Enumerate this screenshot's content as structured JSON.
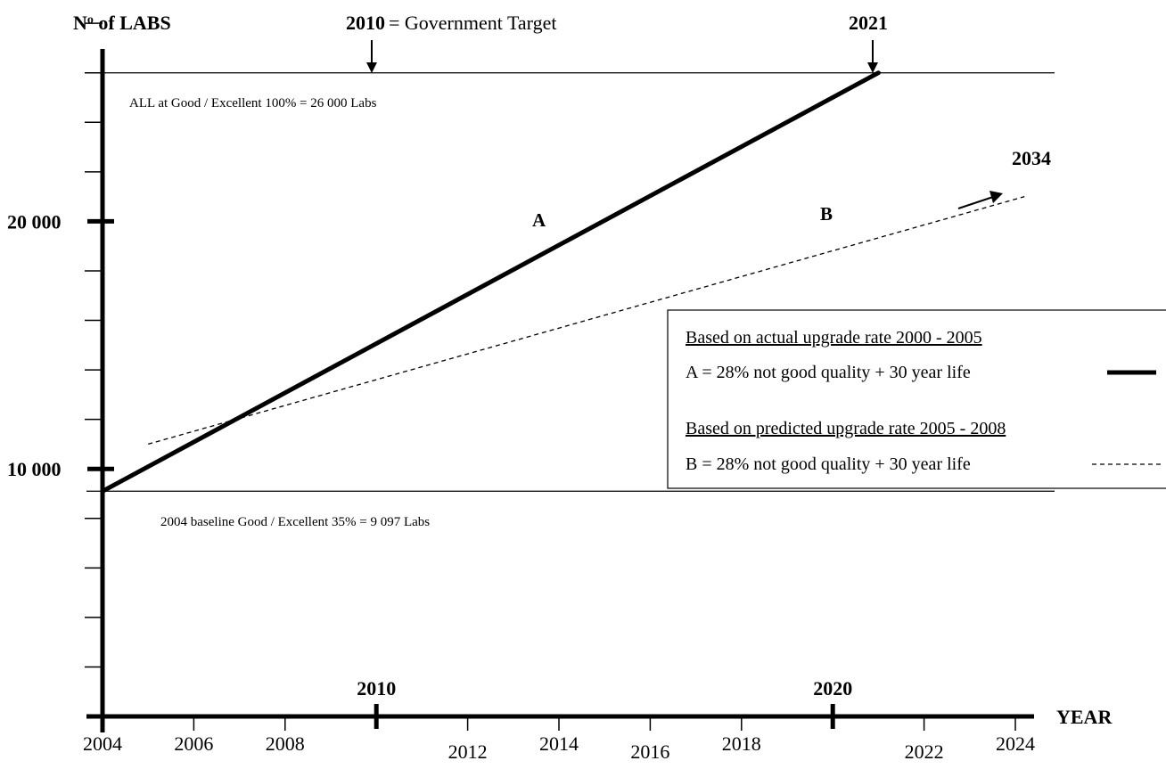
{
  "chart_data": {
    "type": "line",
    "ylabel": "Nº of LABS",
    "xlabel": "YEAR",
    "x_ticks_minor": [
      "2004",
      "2006",
      "2008",
      "2012",
      "2014",
      "2016",
      "2018",
      "2022",
      "2024"
    ],
    "x_ticks_major": [
      "2010",
      "2020"
    ],
    "x_origin_label": "2004",
    "y_ticks_labeled": [
      {
        "value": 10000,
        "label": "10 000"
      },
      {
        "value": 20000,
        "label": "20 000"
      }
    ],
    "y_tick_step": 2000,
    "xlim": [
      2004,
      2024.5
    ],
    "ylim": [
      0,
      28000
    ],
    "series": [
      {
        "name": "A",
        "style": "solid-thick",
        "x": [
          2004,
          2021
        ],
        "y": [
          9097,
          26000
        ]
      },
      {
        "name": "B",
        "style": "dashed",
        "x": [
          2005,
          2024.2
        ],
        "y": [
          11000,
          21000
        ]
      }
    ],
    "reference_lines": [
      {
        "y": 26000,
        "label": "ALL at Good / Excellent  100% = 26 000 Labs"
      },
      {
        "y": 9097,
        "label": "2004 baseline Good / Excellent  35% = 9 097 Labs"
      }
    ],
    "annotations": {
      "target_year": "2010",
      "target_text": "= Government Target",
      "end_a": "2021",
      "end_b": "2034"
    },
    "legend": {
      "placement": "right",
      "heading_a": "Based on actual upgrade rate 2000 - 2005",
      "entry_a": "A  =   28% not good quality + 30 year life",
      "heading_b": "Based on predicted upgrade rate 2005 - 2008",
      "entry_b": "B  =   28% not good quality + 30 year life"
    }
  }
}
